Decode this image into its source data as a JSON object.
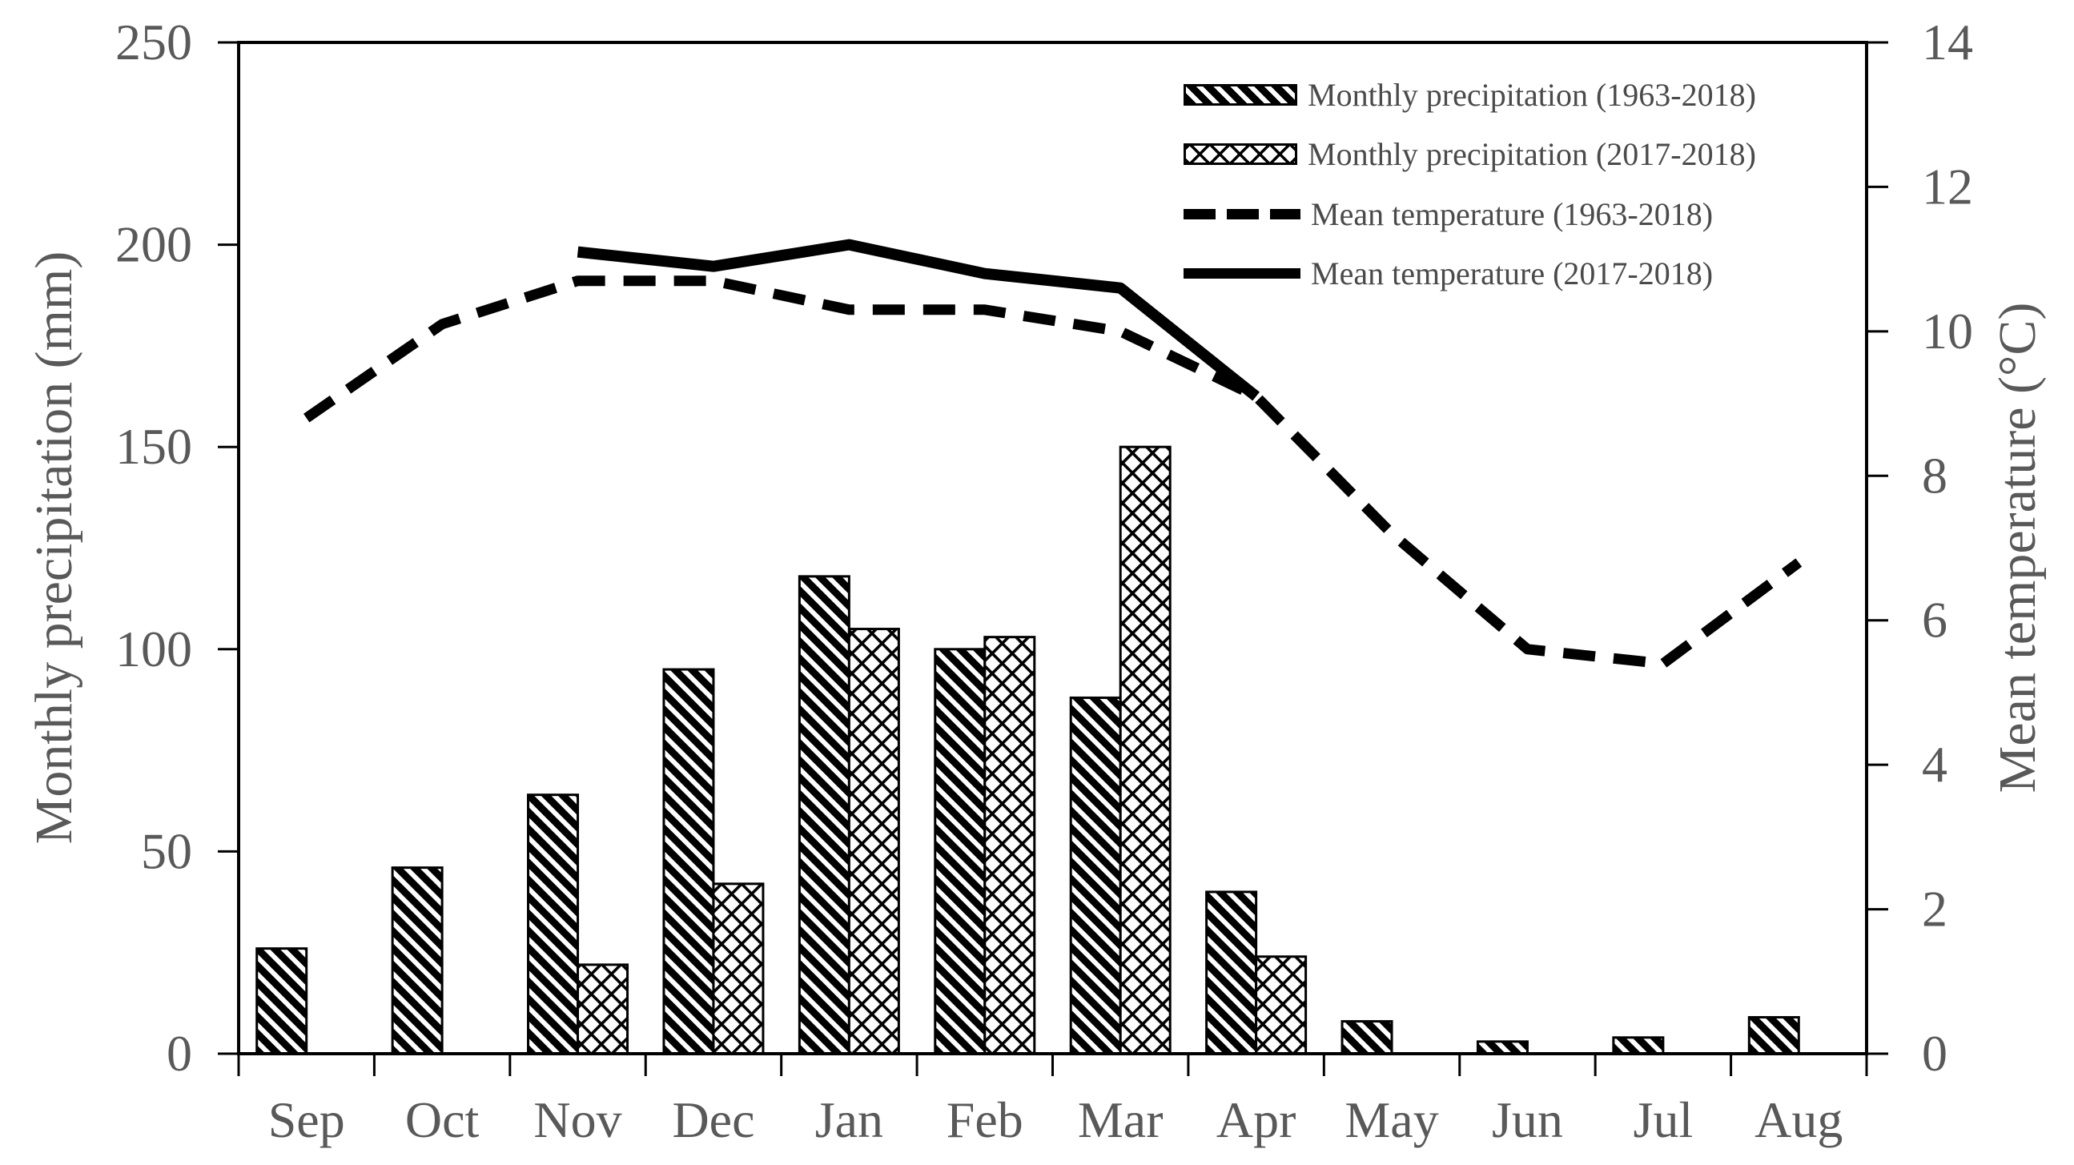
{
  "chart_data": {
    "type": "bar",
    "subtype": "combo-bar-line-dual-axis",
    "categories": [
      "Sep",
      "Oct",
      "Nov",
      "Dec",
      "Jan",
      "Feb",
      "Mar",
      "Apr",
      "May",
      "Jun",
      "Jul",
      "Aug"
    ],
    "series": [
      {
        "id": "precip-1963-2018",
        "name": "Monthly precipitation (1963-2018)",
        "type": "bar",
        "style": "diagonal-hatch",
        "axis": "left",
        "unit": "mm",
        "values": [
          26,
          46,
          64,
          95,
          118,
          100,
          88,
          40,
          8,
          3,
          4,
          9
        ]
      },
      {
        "id": "precip-2017-2018",
        "name": "Monthly precipitation (2017-2018)",
        "type": "bar",
        "style": "cross-hatch",
        "axis": "left",
        "unit": "mm",
        "values": [
          0,
          0,
          22,
          42,
          105,
          103,
          150,
          24,
          0,
          0,
          0,
          0
        ]
      },
      {
        "id": "temp-1963-2018",
        "name": "Mean temperature (1963-2018)",
        "type": "line",
        "style": "dashed",
        "axis": "right",
        "unit": "°C",
        "values": [
          8.8,
          10.1,
          10.7,
          10.7,
          10.3,
          10.3,
          10.0,
          9.1,
          7.2,
          5.6,
          5.4,
          6.8
        ]
      },
      {
        "id": "temp-2017-2018",
        "name": "Mean temperature (2017-2018)",
        "type": "line",
        "style": "solid",
        "axis": "right",
        "unit": "°C",
        "values": [
          null,
          null,
          11.1,
          10.9,
          11.2,
          10.8,
          10.6,
          9.1,
          null,
          null,
          null,
          null
        ]
      }
    ],
    "y_left": {
      "label": "Monthly precipitation (mm)",
      "min": 0,
      "max": 250,
      "ticks": [
        "0",
        "50",
        "100",
        "150",
        "200",
        "250"
      ]
    },
    "y_right": {
      "label": "Mean temperature (°C)",
      "min": 0,
      "max": 14,
      "ticks": [
        "0",
        "2",
        "4",
        "6",
        "8",
        "10",
        "12",
        "14"
      ]
    },
    "xlabel": "",
    "title": "",
    "grid": false,
    "legend_position": "top-right-inside"
  },
  "colors": {
    "ink": "#000000",
    "tick_text": "#595959",
    "legend_text": "#4a4a4a",
    "background": "#ffffff"
  }
}
